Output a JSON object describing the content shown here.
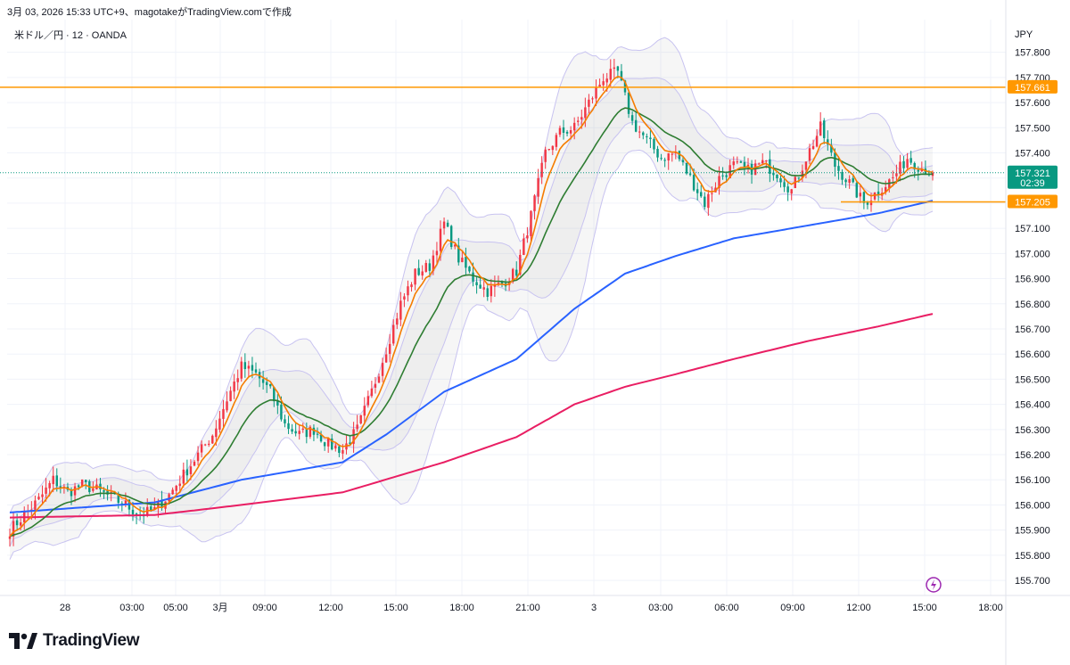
{
  "header": {
    "title": "3月 03, 2026 15:33 UTC+9、magotakeがTradingView.comで作成",
    "symbol": "米ドル／円 · 12 · OANDA",
    "currency": "JPY",
    "brand": "TradingView"
  },
  "colors": {
    "up": "#f23645",
    "down": "#089981",
    "ema_fast": "#f57c00",
    "ema_mid": "#2e7d32",
    "ma_long": "#2962ff",
    "ma_longest": "#e91e63",
    "band": "#c8c3f0",
    "hline": "#ff9800",
    "last_price": "#089981"
  },
  "chart_data": {
    "type": "candlestick",
    "y_axis": {
      "ylim": [
        155.64,
        157.93
      ],
      "ticks": [
        "157.800",
        "157.700",
        "157.600",
        "157.500",
        "157.400",
        "157.300",
        "157.200",
        "157.100",
        "157.000",
        "156.900",
        "156.800",
        "156.700",
        "156.600",
        "156.500",
        "156.400",
        "156.300",
        "156.200",
        "156.100",
        "156.000",
        "155.900",
        "155.800",
        "155.700"
      ]
    },
    "x_axis": {
      "labels": [
        "28",
        "03:00",
        "05:00",
        "3月",
        "09:00",
        "12:00",
        "15:00",
        "18:00",
        "21:00",
        "3",
        "03:00",
        "06:00",
        "09:00",
        "12:00",
        "15:00",
        "18:00"
      ]
    },
    "horizontal_lines": [
      {
        "price": 157.661,
        "label": "157.661",
        "extends": "full"
      },
      {
        "price": 157.205,
        "label": "157.205",
        "extends": "from 11:00 on 3"
      }
    ],
    "last_price": {
      "price": 157.321,
      "label": "157.321",
      "countdown": "02:39"
    },
    "price_path": [
      [
        0,
        155.9
      ],
      [
        4,
        155.96
      ],
      [
        8,
        156.02
      ],
      [
        12,
        156.1
      ],
      [
        16,
        156.05
      ],
      [
        20,
        156.08
      ],
      [
        24,
        156.06
      ],
      [
        28,
        156.03
      ],
      [
        32,
        156.0
      ],
      [
        36,
        155.96
      ],
      [
        40,
        155.98
      ],
      [
        44,
        156.04
      ],
      [
        48,
        156.12
      ],
      [
        52,
        156.2
      ],
      [
        56,
        156.28
      ],
      [
        60,
        156.42
      ],
      [
        64,
        156.55
      ],
      [
        68,
        156.52
      ],
      [
        72,
        156.45
      ],
      [
        76,
        156.32
      ],
      [
        80,
        156.28
      ],
      [
        84,
        156.3
      ],
      [
        88,
        156.24
      ],
      [
        92,
        156.22
      ],
      [
        96,
        156.3
      ],
      [
        100,
        156.45
      ],
      [
        104,
        156.62
      ],
      [
        108,
        156.8
      ],
      [
        112,
        156.92
      ],
      [
        116,
        156.95
      ],
      [
        120,
        157.12
      ],
      [
        124,
        156.98
      ],
      [
        128,
        156.9
      ],
      [
        132,
        156.85
      ],
      [
        136,
        156.88
      ],
      [
        140,
        156.93
      ],
      [
        144,
        157.15
      ],
      [
        148,
        157.4
      ],
      [
        152,
        157.48
      ],
      [
        156,
        157.5
      ],
      [
        160,
        157.6
      ],
      [
        164,
        157.7
      ],
      [
        168,
        157.72
      ],
      [
        172,
        157.52
      ],
      [
        176,
        157.45
      ],
      [
        180,
        157.38
      ],
      [
        184,
        157.4
      ],
      [
        188,
        157.3
      ],
      [
        192,
        157.2
      ],
      [
        196,
        157.3
      ],
      [
        200,
        157.35
      ],
      [
        204,
        157.33
      ],
      [
        208,
        157.36
      ],
      [
        212,
        157.32
      ],
      [
        216,
        157.25
      ],
      [
        220,
        157.38
      ],
      [
        224,
        157.5
      ],
      [
        228,
        157.35
      ],
      [
        232,
        157.28
      ],
      [
        236,
        157.2
      ],
      [
        240,
        157.25
      ],
      [
        244,
        157.3
      ],
      [
        248,
        157.38
      ],
      [
        252,
        157.34
      ],
      [
        255,
        157.32
      ]
    ],
    "series": [
      {
        "name": "",
        "kind": "ema_fast"
      },
      {
        "name": "",
        "kind": "ema_mid"
      },
      {
        "name": "",
        "kind": "bollinger_bands"
      },
      {
        "name": "",
        "kind": "ma_long",
        "path": [
          [
            0,
            155.97
          ],
          [
            40,
            156.01
          ],
          [
            64,
            156.1
          ],
          [
            92,
            156.17
          ],
          [
            104,
            156.28
          ],
          [
            120,
            156.45
          ],
          [
            140,
            156.58
          ],
          [
            156,
            156.78
          ],
          [
            170,
            156.92
          ],
          [
            184,
            156.99
          ],
          [
            200,
            157.06
          ],
          [
            220,
            157.11
          ],
          [
            240,
            157.16
          ],
          [
            255,
            157.21
          ]
        ]
      },
      {
        "name": "",
        "kind": "ma_longest",
        "path": [
          [
            0,
            155.95
          ],
          [
            40,
            155.96
          ],
          [
            64,
            156.0
          ],
          [
            92,
            156.05
          ],
          [
            120,
            156.17
          ],
          [
            140,
            156.27
          ],
          [
            156,
            156.4
          ],
          [
            170,
            156.47
          ],
          [
            184,
            156.52
          ],
          [
            200,
            156.58
          ],
          [
            220,
            156.65
          ],
          [
            240,
            156.71
          ],
          [
            255,
            156.76
          ]
        ]
      }
    ]
  }
}
